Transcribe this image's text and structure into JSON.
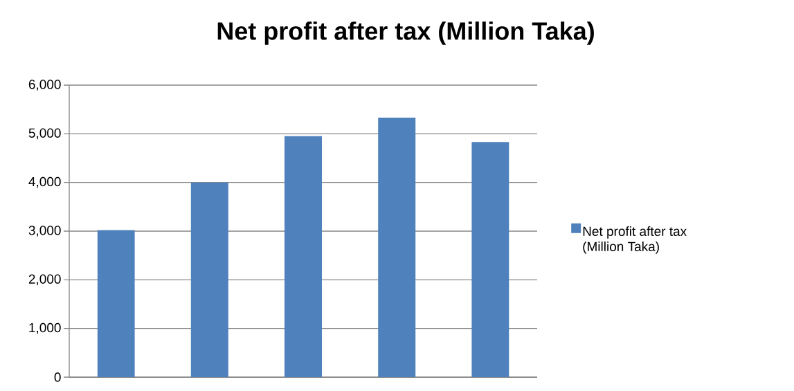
{
  "chart_data": {
    "type": "bar",
    "title": "Net profit after tax (Million Taka)",
    "categories": [
      null,
      null,
      null,
      null,
      null
    ],
    "series": [
      {
        "name": "Net profit after tax (Million Taka)",
        "color": "#4f81bd",
        "values": [
          3020,
          4000,
          4950,
          5330,
          4830
        ]
      }
    ],
    "ylim": [
      0,
      6000
    ],
    "yticks": [
      0,
      {
        "value": 1000,
        "label": "1,000"
      },
      {
        "value": 2000,
        "label": "2,000"
      },
      {
        "value": 3000,
        "label": "3,000"
      },
      {
        "value": 4000,
        "label": "4,000"
      },
      {
        "value": 5000,
        "label": "5,000"
      },
      {
        "value": 6000,
        "label": "6,000"
      }
    ],
    "grid": "y",
    "legend": "right"
  }
}
